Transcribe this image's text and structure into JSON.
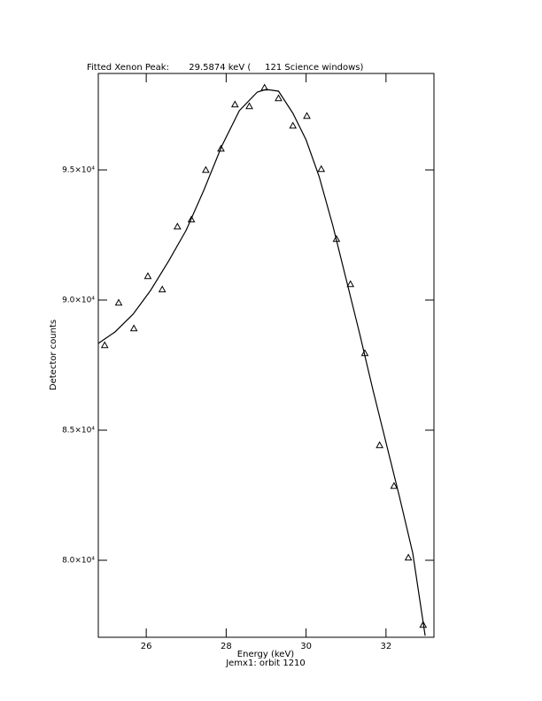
{
  "chart_data": {
    "type": "scatter",
    "title": "Fitted Xenon Peak:       29.5874 keV (     121 Science windows)",
    "xlabel": "Energy (keV)",
    "subtitle": "Jemx1: orbit 1210",
    "ylabel": "Detector counts",
    "xlim": [
      24.8,
      33.2
    ],
    "xticks": [
      26,
      28,
      30,
      32
    ],
    "ylim": [
      77041,
      98707
    ],
    "yticks": [
      {
        "value": 80000,
        "label": "8.0×10⁴"
      },
      {
        "value": 85000,
        "label": "8.5×10⁴"
      },
      {
        "value": 90000,
        "label": "9.0×10⁴"
      },
      {
        "value": 95000,
        "label": "9.5×10⁴"
      }
    ],
    "series": [
      {
        "kind": "markers",
        "marker": "triangle",
        "color": "#000000",
        "x": [
          24.96,
          25.31,
          25.69,
          26.04,
          26.4,
          26.78,
          27.13,
          27.49,
          27.87,
          28.22,
          28.58,
          28.96,
          29.31,
          29.67,
          30.02,
          30.38,
          30.76,
          31.11,
          31.47,
          31.84,
          32.2,
          32.56,
          32.93
        ],
        "values": [
          88266,
          89898,
          88912,
          90919,
          90408,
          92823,
          93095,
          95000,
          95816,
          97517,
          97449,
          98163,
          97755,
          96700,
          97075,
          95034,
          92347,
          90612,
          87960,
          84423,
          82858,
          80103,
          77519
        ]
      },
      {
        "kind": "line",
        "color": "#000000",
        "x": [
          24.8,
          25.22,
          25.67,
          26.11,
          26.56,
          27.0,
          27.44,
          27.89,
          28.33,
          28.78,
          29.0,
          29.31,
          29.67,
          30.0,
          30.33,
          30.67,
          31.0,
          31.33,
          31.67,
          32.0,
          32.33,
          32.67,
          32.98
        ],
        "values": [
          88334,
          88776,
          89456,
          90374,
          91497,
          92687,
          94218,
          95918,
          97279,
          97993,
          98095,
          98027,
          97177,
          96156,
          94728,
          92857,
          90816,
          88776,
          86565,
          84524,
          82483,
          80272,
          77100
        ]
      }
    ]
  }
}
